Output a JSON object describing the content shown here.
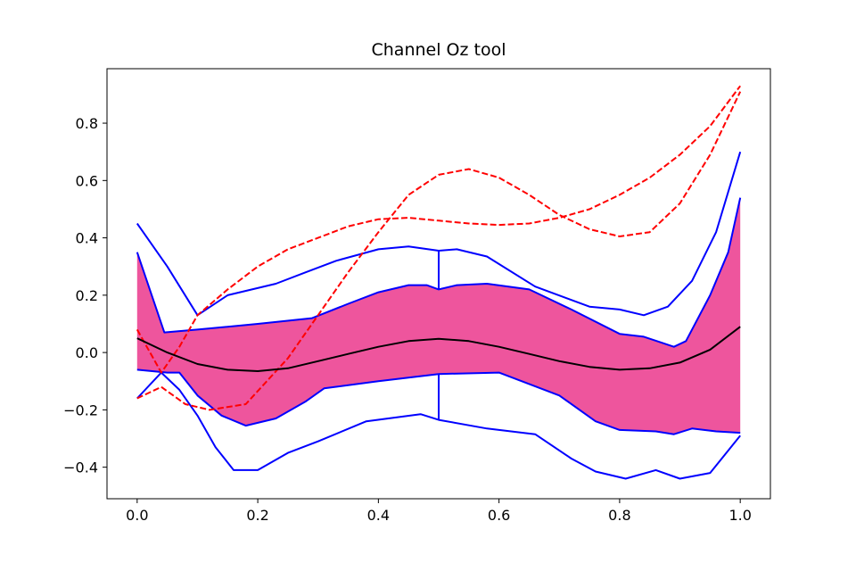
{
  "chart_data": {
    "type": "line",
    "title": "Channel Oz tool",
    "xlabel": "",
    "ylabel": "",
    "xlim": [
      -0.05,
      1.05
    ],
    "ylim": [
      -0.51,
      0.99
    ],
    "grid": false,
    "xticks": [
      {
        "value": 0.0,
        "label": "0.0"
      },
      {
        "value": 0.2,
        "label": "0.2"
      },
      {
        "value": 0.4,
        "label": "0.4"
      },
      {
        "value": 0.6,
        "label": "0.6"
      },
      {
        "value": 0.8,
        "label": "0.8"
      },
      {
        "value": 1.0,
        "label": "1.0"
      }
    ],
    "yticks": [
      {
        "value": -0.4,
        "label": "−0.4"
      },
      {
        "value": -0.2,
        "label": "−0.2"
      },
      {
        "value": 0.0,
        "label": "0.0"
      },
      {
        "value": 0.2,
        "label": "0.2"
      },
      {
        "value": 0.4,
        "label": "0.4"
      },
      {
        "value": 0.6,
        "label": "0.6"
      },
      {
        "value": 0.8,
        "label": "0.8"
      }
    ],
    "colors": {
      "band": "#ee559d",
      "blue": "#0000ff",
      "red": "#ff0000",
      "mean": "#000000"
    },
    "band": {
      "upper": [
        [
          0,
          0.35
        ],
        [
          0.045,
          0.07
        ],
        [
          0.1,
          0.08
        ],
        [
          0.2,
          0.1
        ],
        [
          0.29,
          0.12
        ],
        [
          0.35,
          0.17
        ],
        [
          0.4,
          0.21
        ],
        [
          0.45,
          0.235
        ],
        [
          0.48,
          0.235
        ],
        [
          0.5,
          0.22
        ],
        [
          0.53,
          0.235
        ],
        [
          0.58,
          0.24
        ],
        [
          0.65,
          0.22
        ],
        [
          0.72,
          0.15
        ],
        [
          0.8,
          0.065
        ],
        [
          0.84,
          0.055
        ],
        [
          0.89,
          0.02
        ],
        [
          0.91,
          0.04
        ],
        [
          0.95,
          0.2
        ],
        [
          0.98,
          0.35
        ],
        [
          1.0,
          0.54
        ]
      ],
      "lower": [
        [
          0,
          -0.06
        ],
        [
          0.05,
          -0.07
        ],
        [
          0.07,
          -0.07
        ],
        [
          0.1,
          -0.15
        ],
        [
          0.14,
          -0.22
        ],
        [
          0.18,
          -0.255
        ],
        [
          0.23,
          -0.23
        ],
        [
          0.28,
          -0.17
        ],
        [
          0.31,
          -0.125
        ],
        [
          0.4,
          -0.1
        ],
        [
          0.5,
          -0.075
        ],
        [
          0.6,
          -0.07
        ],
        [
          0.7,
          -0.15
        ],
        [
          0.76,
          -0.24
        ],
        [
          0.8,
          -0.27
        ],
        [
          0.86,
          -0.275
        ],
        [
          0.89,
          -0.285
        ],
        [
          0.92,
          -0.265
        ],
        [
          0.96,
          -0.275
        ],
        [
          1.0,
          -0.28
        ]
      ]
    },
    "series": [
      {
        "color": "#0000ff",
        "dash": false,
        "points": [
          [
            0,
            0.45
          ],
          [
            0.05,
            0.3
          ],
          [
            0.1,
            0.13
          ],
          [
            0.15,
            0.2
          ],
          [
            0.23,
            0.24
          ],
          [
            0.28,
            0.28
          ],
          [
            0.33,
            0.32
          ],
          [
            0.4,
            0.36
          ],
          [
            0.45,
            0.37
          ],
          [
            0.5,
            0.355
          ],
          [
            0.53,
            0.36
          ],
          [
            0.58,
            0.335
          ],
          [
            0.66,
            0.23
          ],
          [
            0.75,
            0.16
          ],
          [
            0.8,
            0.15
          ],
          [
            0.84,
            0.13
          ],
          [
            0.88,
            0.16
          ],
          [
            0.92,
            0.25
          ],
          [
            0.96,
            0.42
          ],
          [
            1.0,
            0.7
          ]
        ]
      },
      {
        "color": "#0000ff",
        "dash": false,
        "points": [
          [
            0.5,
            0.355
          ],
          [
            0.5,
            0.22
          ]
        ]
      },
      {
        "color": "#0000ff",
        "dash": false,
        "points": [
          [
            0.5,
            -0.075
          ],
          [
            0.5,
            -0.235
          ]
        ]
      },
      {
        "color": "#0000ff",
        "dash": false,
        "points": [
          [
            0,
            -0.16
          ],
          [
            0.04,
            -0.07
          ],
          [
            0.07,
            -0.13
          ],
          [
            0.1,
            -0.22
          ],
          [
            0.13,
            -0.33
          ],
          [
            0.16,
            -0.41
          ],
          [
            0.2,
            -0.41
          ],
          [
            0.25,
            -0.35
          ],
          [
            0.3,
            -0.31
          ],
          [
            0.38,
            -0.24
          ],
          [
            0.47,
            -0.215
          ],
          [
            0.5,
            -0.235
          ],
          [
            0.58,
            -0.265
          ],
          [
            0.66,
            -0.285
          ],
          [
            0.72,
            -0.37
          ],
          [
            0.76,
            -0.415
          ],
          [
            0.81,
            -0.44
          ],
          [
            0.86,
            -0.41
          ],
          [
            0.9,
            -0.44
          ],
          [
            0.95,
            -0.42
          ],
          [
            1.0,
            -0.29
          ]
        ]
      },
      {
        "color": "#ff0000",
        "dash": true,
        "points": [
          [
            0,
            0.08
          ],
          [
            0.04,
            -0.07
          ],
          [
            0.07,
            0.02
          ],
          [
            0.1,
            0.13
          ],
          [
            0.15,
            0.22
          ],
          [
            0.2,
            0.3
          ],
          [
            0.25,
            0.36
          ],
          [
            0.3,
            0.4
          ],
          [
            0.35,
            0.44
          ],
          [
            0.4,
            0.465
          ],
          [
            0.45,
            0.47
          ],
          [
            0.5,
            0.46
          ],
          [
            0.55,
            0.45
          ],
          [
            0.6,
            0.445
          ],
          [
            0.65,
            0.45
          ],
          [
            0.7,
            0.47
          ],
          [
            0.75,
            0.5
          ],
          [
            0.8,
            0.55
          ],
          [
            0.85,
            0.61
          ],
          [
            0.9,
            0.69
          ],
          [
            0.95,
            0.79
          ],
          [
            1.0,
            0.93
          ]
        ]
      },
      {
        "color": "#ff0000",
        "dash": true,
        "points": [
          [
            0,
            -0.16
          ],
          [
            0.04,
            -0.12
          ],
          [
            0.08,
            -0.18
          ],
          [
            0.12,
            -0.2
          ],
          [
            0.18,
            -0.18
          ],
          [
            0.25,
            -0.02
          ],
          [
            0.3,
            0.13
          ],
          [
            0.35,
            0.28
          ],
          [
            0.4,
            0.42
          ],
          [
            0.45,
            0.55
          ],
          [
            0.5,
            0.62
          ],
          [
            0.55,
            0.64
          ],
          [
            0.6,
            0.61
          ],
          [
            0.65,
            0.55
          ],
          [
            0.7,
            0.48
          ],
          [
            0.75,
            0.43
          ],
          [
            0.8,
            0.405
          ],
          [
            0.85,
            0.42
          ],
          [
            0.9,
            0.52
          ],
          [
            0.95,
            0.69
          ],
          [
            1.0,
            0.91
          ]
        ]
      },
      {
        "color": "#000000",
        "dash": false,
        "points": [
          [
            0,
            0.05
          ],
          [
            0.05,
            0.0
          ],
          [
            0.1,
            -0.04
          ],
          [
            0.15,
            -0.06
          ],
          [
            0.2,
            -0.065
          ],
          [
            0.25,
            -0.055
          ],
          [
            0.3,
            -0.03
          ],
          [
            0.35,
            -0.005
          ],
          [
            0.4,
            0.02
          ],
          [
            0.45,
            0.04
          ],
          [
            0.5,
            0.048
          ],
          [
            0.55,
            0.04
          ],
          [
            0.6,
            0.02
          ],
          [
            0.65,
            -0.005
          ],
          [
            0.7,
            -0.03
          ],
          [
            0.75,
            -0.05
          ],
          [
            0.8,
            -0.06
          ],
          [
            0.85,
            -0.055
          ],
          [
            0.9,
            -0.035
          ],
          [
            0.95,
            0.01
          ],
          [
            1.0,
            0.09
          ]
        ]
      }
    ]
  }
}
